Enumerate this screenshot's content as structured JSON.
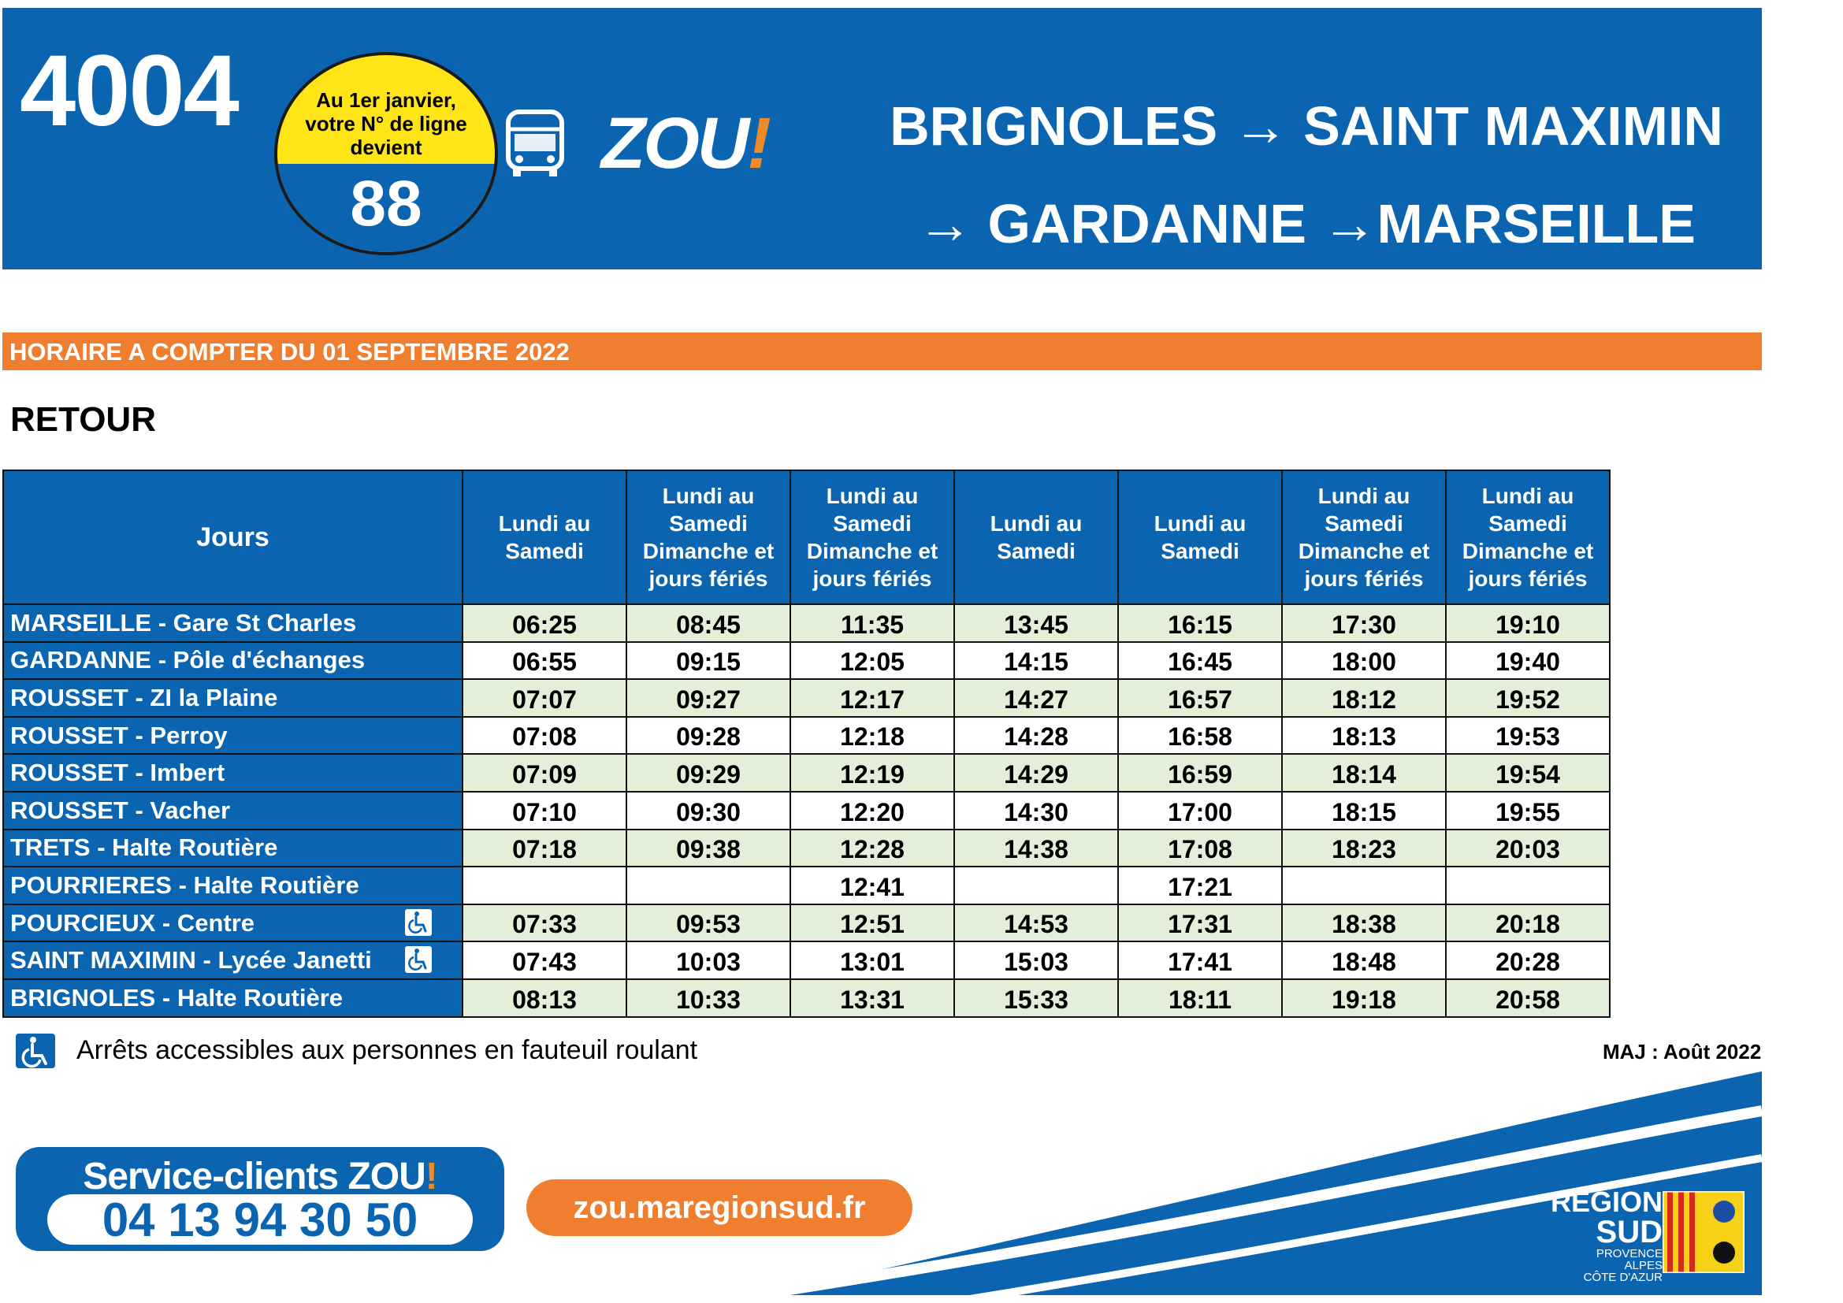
{
  "header": {
    "line_number": "4004",
    "badge": {
      "line1": "Au 1er janvier,",
      "line2": "votre N° de ligne",
      "line3": "devient",
      "new_number": "88"
    },
    "logo_text": "ZOU",
    "logo_bang": "!",
    "route_line1": "BRIGNOLES → SAINT MAXIMIN",
    "route_line2": "→ GARDANNE →MARSEILLE"
  },
  "validity": "HORAIRE A COMPTER DU  01 SEPTEMBRE 2022",
  "direction": "RETOUR",
  "table": {
    "first_header": "Jours",
    "columns": [
      "Lundi au Samedi",
      "Lundi au Samedi Dimanche et jours fériés",
      "Lundi au Samedi Dimanche et jours fériés",
      "Lundi au Samedi",
      "Lundi au Samedi",
      "Lundi au Samedi Dimanche et jours fériés",
      "Lundi au Samedi Dimanche et jours fériés"
    ],
    "rows": [
      {
        "stop": "MARSEILLE - Gare St Charles",
        "accessible": false,
        "times": [
          "06:25",
          "08:45",
          "11:35",
          "13:45",
          "16:15",
          "17:30",
          "19:10"
        ]
      },
      {
        "stop": "GARDANNE - Pôle d'échanges",
        "accessible": false,
        "times": [
          "06:55",
          "09:15",
          "12:05",
          "14:15",
          "16:45",
          "18:00",
          "19:40"
        ]
      },
      {
        "stop": "ROUSSET - ZI la Plaine",
        "accessible": false,
        "times": [
          "07:07",
          "09:27",
          "12:17",
          "14:27",
          "16:57",
          "18:12",
          "19:52"
        ]
      },
      {
        "stop": "ROUSSET - Perroy",
        "accessible": false,
        "times": [
          "07:08",
          "09:28",
          "12:18",
          "14:28",
          "16:58",
          "18:13",
          "19:53"
        ]
      },
      {
        "stop": "ROUSSET - Imbert",
        "accessible": false,
        "times": [
          "07:09",
          "09:29",
          "12:19",
          "14:29",
          "16:59",
          "18:14",
          "19:54"
        ]
      },
      {
        "stop": "ROUSSET - Vacher",
        "accessible": false,
        "times": [
          "07:10",
          "09:30",
          "12:20",
          "14:30",
          "17:00",
          "18:15",
          "19:55"
        ]
      },
      {
        "stop": "TRETS - Halte Routière",
        "accessible": false,
        "times": [
          "07:18",
          "09:38",
          "12:28",
          "14:38",
          "17:08",
          "18:23",
          "20:03"
        ]
      },
      {
        "stop": "POURRIERES - Halte Routière",
        "accessible": false,
        "times": [
          "",
          "",
          "12:41",
          "",
          "17:21",
          "",
          ""
        ]
      },
      {
        "stop": "POURCIEUX - Centre",
        "accessible": true,
        "times": [
          "07:33",
          "09:53",
          "12:51",
          "14:53",
          "17:31",
          "18:38",
          "20:18"
        ]
      },
      {
        "stop": "SAINT MAXIMIN - Lycée Janetti",
        "accessible": true,
        "times": [
          "07:43",
          "10:03",
          "13:01",
          "15:03",
          "17:41",
          "18:48",
          "20:28"
        ]
      },
      {
        "stop": "BRIGNOLES - Halte Routière",
        "accessible": false,
        "times": [
          "08:13",
          "10:33",
          "13:31",
          "15:33",
          "18:11",
          "19:18",
          "20:58"
        ]
      }
    ]
  },
  "legend": {
    "icon": "wheelchair-icon",
    "text": "Arrêts accessibles aux personnes en fauteuil roulant"
  },
  "updated": "MAJ : Août 2022",
  "footer": {
    "service_label": "Service-clients ZOU",
    "service_bang": "!",
    "phone": "04 13 94 30 50",
    "website": "zou.maregionsud.fr",
    "region_line1": "RÉGION",
    "region_line2": "SUD",
    "region_line3": "PROVENCE",
    "region_line4": "ALPES",
    "region_line5": "CÔTE D'AZUR"
  },
  "colors": {
    "blue": "#0b64b0",
    "orange": "#ef7f2f",
    "yellow": "#ffe418",
    "row_tint": "#e3efd8"
  }
}
